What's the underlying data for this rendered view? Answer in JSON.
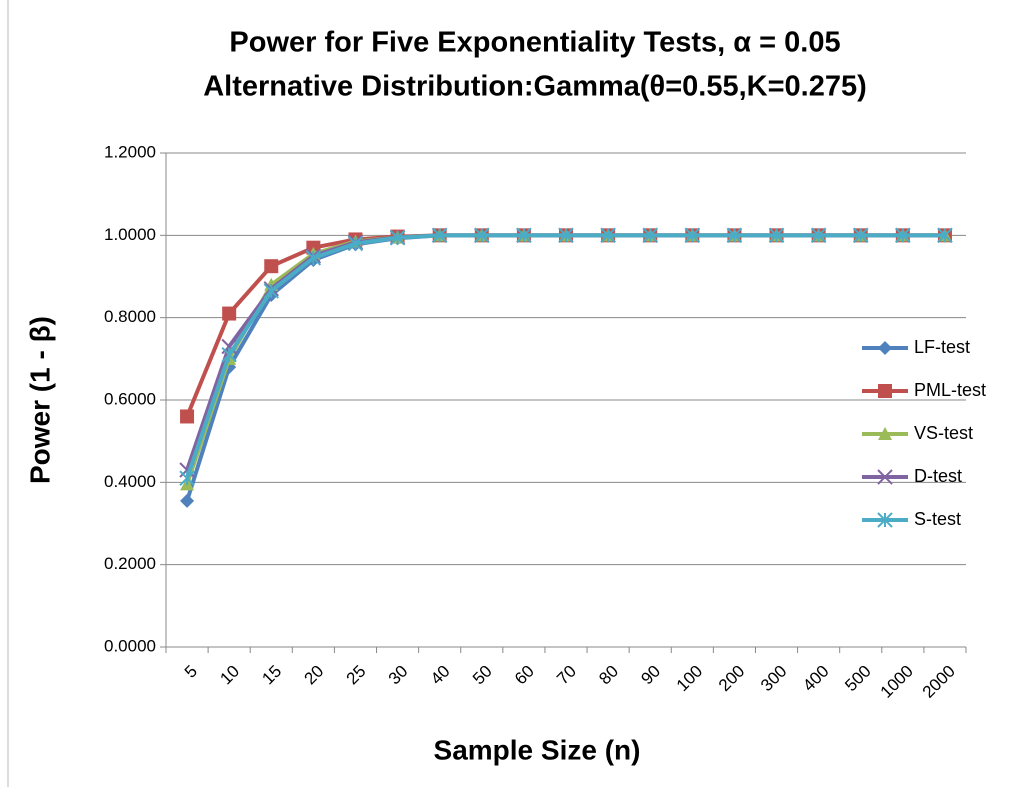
{
  "chart_data": {
    "type": "line",
    "title": "Power for Five Exponentiality Tests, α = 0.05",
    "subtitle": "Alternative Distribution:Gamma(θ=0.55,K=0.275)",
    "x_label": "Sample Size (n)",
    "y_label": "Power (1 - β)",
    "categories": [
      "5",
      "10",
      "15",
      "20",
      "25",
      "30",
      "40",
      "50",
      "60",
      "70",
      "80",
      "90",
      "100",
      "200",
      "300",
      "400",
      "500",
      "1000",
      "2000"
    ],
    "series": [
      {
        "name": "LF-test",
        "color": "#4f81bd",
        "marker": "diamond",
        "values": [
          0.355,
          0.68,
          0.855,
          0.94,
          0.978,
          0.993,
          1,
          1,
          1,
          1,
          1,
          1,
          1,
          1,
          1,
          1,
          1,
          1,
          1
        ]
      },
      {
        "name": "PML-test",
        "color": "#c0504d",
        "marker": "square",
        "values": [
          0.56,
          0.81,
          0.925,
          0.97,
          0.99,
          0.997,
          1,
          1,
          1,
          1,
          1,
          1,
          1,
          1,
          1,
          1,
          1,
          1,
          1
        ]
      },
      {
        "name": "VS-test",
        "color": "#9bbb59",
        "marker": "triangle",
        "values": [
          0.395,
          0.7,
          0.88,
          0.955,
          0.985,
          0.995,
          1,
          1,
          1,
          1,
          1,
          1,
          1,
          1,
          1,
          1,
          1,
          1,
          1
        ]
      },
      {
        "name": "D-test",
        "color": "#8064a2",
        "marker": "x",
        "values": [
          0.43,
          0.73,
          0.87,
          0.95,
          0.983,
          0.995,
          1,
          1,
          1,
          1,
          1,
          1,
          1,
          1,
          1,
          1,
          1,
          1,
          1
        ]
      },
      {
        "name": "S-test",
        "color": "#4bacc6",
        "marker": "star",
        "values": [
          0.41,
          0.71,
          0.865,
          0.945,
          0.98,
          0.994,
          1,
          1,
          1,
          1,
          1,
          1,
          1,
          1,
          1,
          1,
          1,
          1,
          1
        ]
      }
    ],
    "ylim": [
      0,
      1.2
    ],
    "yticks": [
      {
        "value": 0,
        "label": "0.0000"
      },
      {
        "value": 0.2,
        "label": "0.2000"
      },
      {
        "value": 0.4,
        "label": "0.4000"
      },
      {
        "value": 0.6,
        "label": "0.6000"
      },
      {
        "value": 0.8,
        "label": "0.8000"
      },
      {
        "value": 1,
        "label": "1.0000"
      },
      {
        "value": 1.2,
        "label": "1.2000"
      }
    ],
    "grid": true,
    "legend": "right"
  }
}
